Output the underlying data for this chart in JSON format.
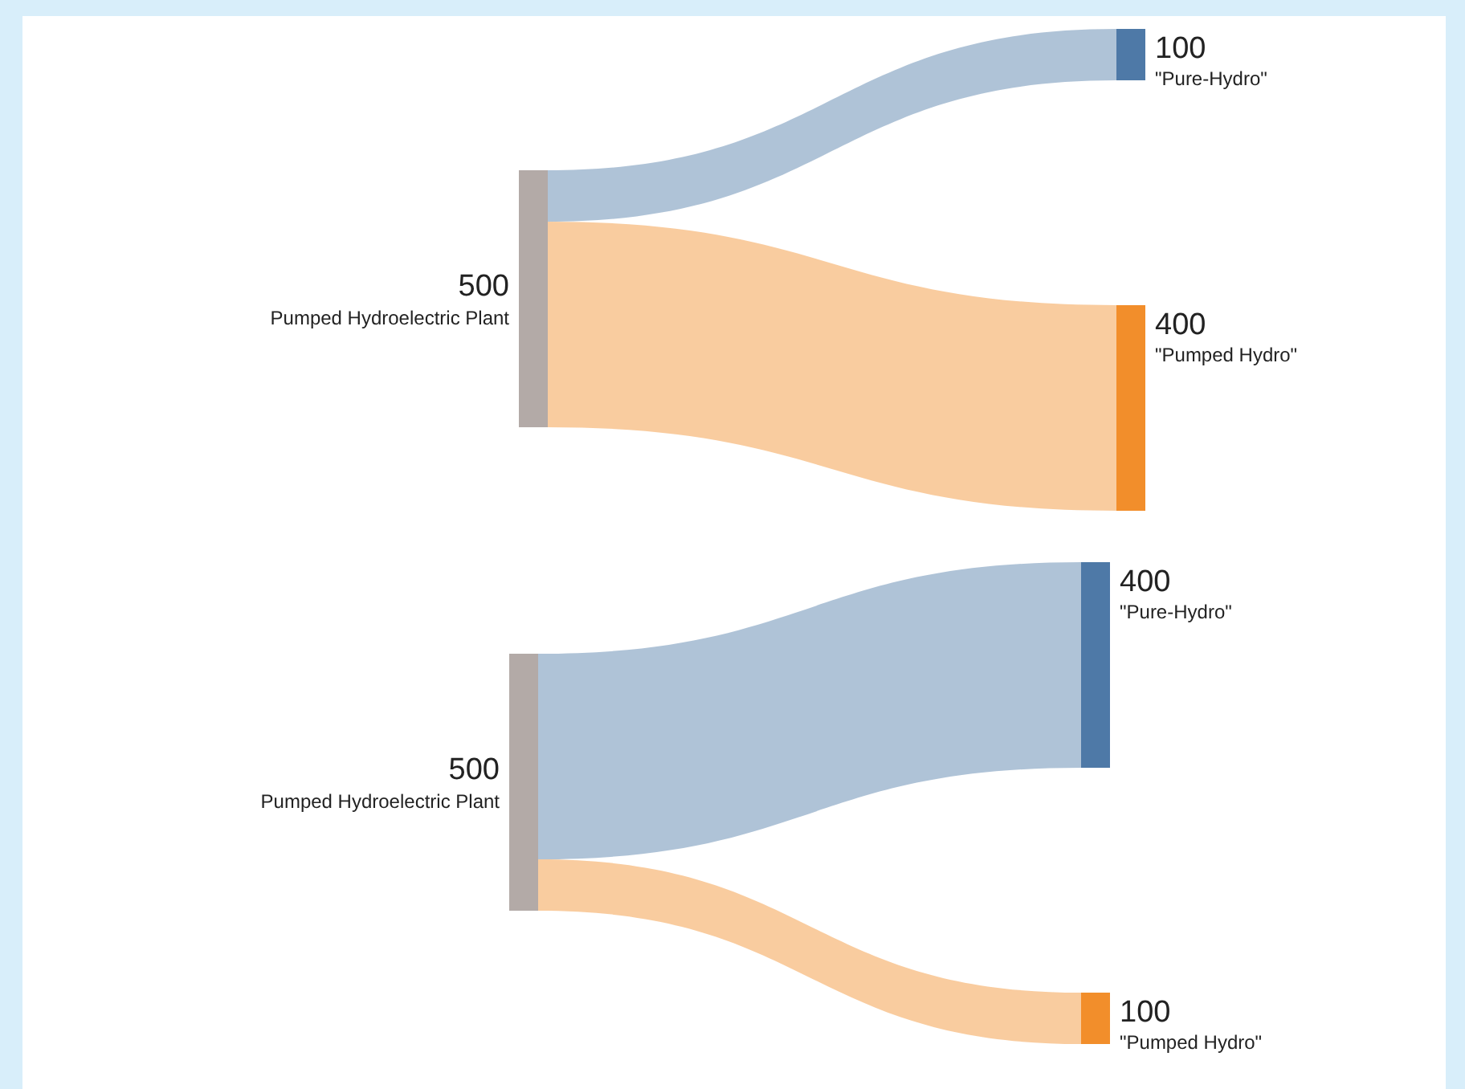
{
  "chart_data": [
    {
      "type": "other",
      "categories": [
        "Pumped Hydroelectric Plant",
        "\"Pure-Hydro\"",
        "\"Pumped Hydro\""
      ],
      "values": [
        500,
        100,
        400
      ],
      "colors": [
        "#b3aaa7",
        "#4e79a7",
        "#f28e2b"
      ],
      "data_labels": true
    },
    {
      "type": "other",
      "categories": [
        "Pumped Hydroelectric Plant",
        "\"Pure-Hydro\"",
        "\"Pumped Hydro\""
      ],
      "values": [
        500,
        400,
        100
      ],
      "colors": [
        "#b3aaa7",
        "#4e79a7",
        "#f28e2b"
      ],
      "data_labels": true
    }
  ]
}
